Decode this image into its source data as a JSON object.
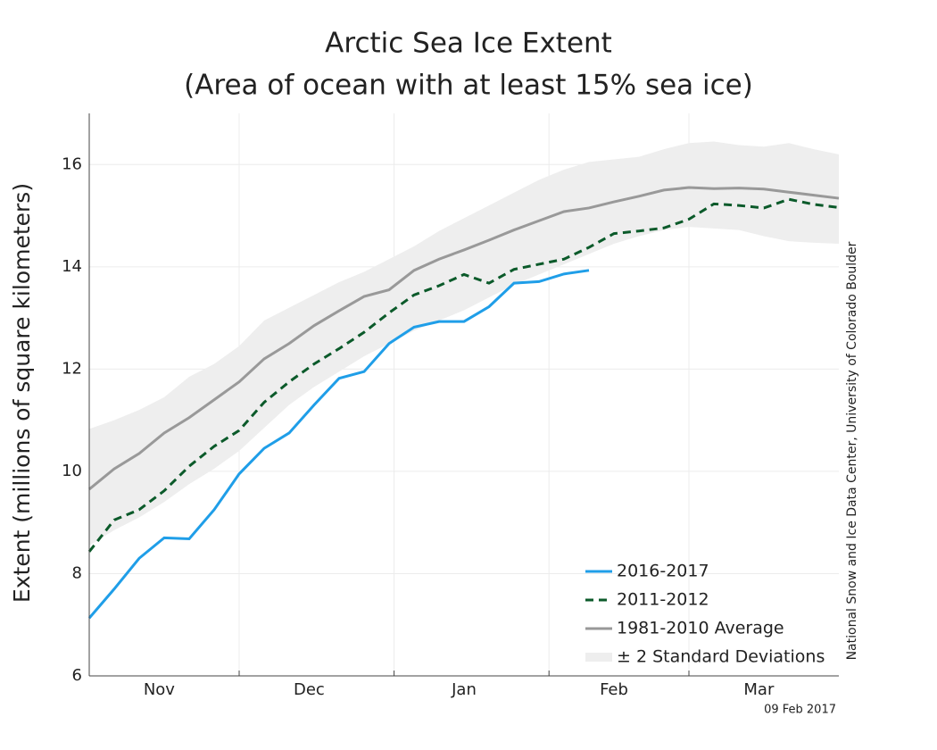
{
  "chart_data": {
    "type": "line",
    "title": "Arctic Sea Ice Extent",
    "subtitle": "(Area of ocean with at least 15% sea ice)",
    "y_label": "Extent (millions of square kilometers)",
    "source": "National Snow and Ice Data Center, University of Colorado Boulder",
    "date": "09 Feb 2017",
    "x": [
      0,
      5,
      10,
      15,
      20,
      25,
      30,
      35,
      40,
      45,
      50,
      55,
      60,
      65,
      70,
      75,
      80,
      85,
      90,
      95,
      100,
      105,
      110,
      115,
      120,
      125,
      130,
      135,
      140,
      145,
      150
    ],
    "xlim": [
      0,
      150
    ],
    "xticks": [
      {
        "value": 14,
        "label": "Nov"
      },
      {
        "value": 44,
        "label": "Dec"
      },
      {
        "value": 75,
        "label": "Jan"
      },
      {
        "value": 105,
        "label": "Feb"
      },
      {
        "value": 134,
        "label": "Mar"
      }
    ],
    "xgrid": [
      30,
      61,
      92,
      120
    ],
    "ylim": [
      6,
      17
    ],
    "yticks": [
      6,
      8,
      10,
      12,
      14,
      16
    ],
    "grid": true,
    "legend": "bottom-right",
    "band": {
      "name": "± 2 Standard Deviations",
      "color": "#eeeeee",
      "upper": [
        10.83,
        11.0,
        11.2,
        11.45,
        11.85,
        12.1,
        12.45,
        12.95,
        13.2,
        13.45,
        13.7,
        13.9,
        14.15,
        14.4,
        14.7,
        14.95,
        15.2,
        15.45,
        15.7,
        15.9,
        16.05,
        16.1,
        16.15,
        16.3,
        16.42,
        16.45,
        16.38,
        16.35,
        16.42,
        16.3,
        16.2
      ],
      "lower": [
        8.55,
        8.85,
        9.1,
        9.4,
        9.75,
        10.05,
        10.4,
        10.85,
        11.3,
        11.65,
        11.95,
        12.25,
        12.5,
        12.75,
        12.95,
        13.15,
        13.4,
        13.65,
        13.85,
        14.05,
        14.25,
        14.45,
        14.6,
        14.72,
        14.78,
        14.75,
        14.72,
        14.6,
        14.5,
        14.47,
        14.45
      ]
    },
    "series": [
      {
        "name": "2016-2017",
        "color": "#1f9ee8",
        "dash": false,
        "values": [
          7.13,
          7.7,
          8.3,
          8.7,
          8.68,
          9.25,
          9.95,
          10.45,
          10.75,
          11.3,
          11.82,
          11.95,
          12.5,
          12.82,
          12.93,
          12.93,
          13.22,
          13.68,
          13.71,
          13.86,
          13.93,
          null,
          null,
          null,
          null,
          null,
          null,
          null,
          null,
          null,
          null
        ]
      },
      {
        "name": "2011-2012",
        "color": "#0b5a2a",
        "dash": true,
        "values": [
          8.43,
          9.05,
          9.25,
          9.62,
          10.1,
          10.49,
          10.8,
          11.35,
          11.75,
          12.1,
          12.4,
          12.72,
          13.1,
          13.45,
          13.63,
          13.85,
          13.68,
          13.95,
          14.05,
          14.15,
          14.38,
          14.65,
          14.7,
          14.76,
          14.93,
          15.23,
          15.2,
          15.15,
          15.32,
          15.22,
          15.16
        ]
      },
      {
        "name": "1981-2010 Average",
        "color": "#999999",
        "dash": false,
        "values": [
          9.65,
          10.05,
          10.35,
          10.75,
          11.05,
          11.4,
          11.75,
          12.2,
          12.5,
          12.85,
          13.14,
          13.42,
          13.55,
          13.93,
          14.15,
          14.33,
          14.52,
          14.72,
          14.9,
          15.08,
          15.15,
          15.27,
          15.38,
          15.5,
          15.55,
          15.53,
          15.54,
          15.52,
          15.46,
          15.4,
          15.34
        ]
      }
    ]
  }
}
